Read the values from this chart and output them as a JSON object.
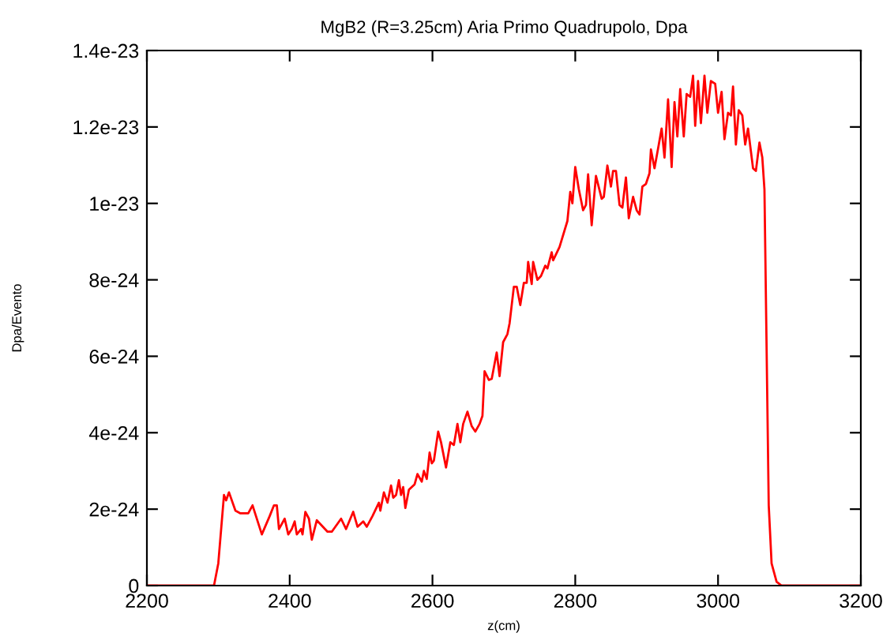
{
  "chart_data": {
    "type": "line",
    "title": "MgB2 (R=3.25cm) Aria Primo Quadrupolo, Dpa",
    "xlabel": "z(cm)",
    "ylabel": "Dpa/Evento",
    "xlim": [
      2200,
      3200
    ],
    "xticks": [
      2200,
      2400,
      2600,
      2800,
      3000,
      3200
    ],
    "ylim": [
      0,
      1.4e-23
    ],
    "yticks": [
      0,
      2e-24,
      4e-24,
      6e-24,
      8e-24,
      1e-23,
      1.2e-23,
      1.4e-23
    ],
    "grid": false,
    "legend": false,
    "marker": "none",
    "line_style": "solid",
    "series": [
      {
        "color": "#ff0000",
        "x": [
          2200,
          2294,
          2300,
          2308,
          2311,
          2315,
          2324,
          2331,
          2342,
          2348,
          2361,
          2372,
          2378,
          2382,
          2385,
          2393,
          2398,
          2403,
          2407,
          2410,
          2416,
          2418,
          2422,
          2427,
          2431,
          2438,
          2453,
          2459,
          2472,
          2479,
          2489,
          2495,
          2503,
          2508,
          2516,
          2525,
          2527,
          2532,
          2537,
          2542,
          2545,
          2549,
          2553,
          2556,
          2559,
          2562,
          2567,
          2575,
          2579,
          2585,
          2588,
          2592,
          2596,
          2599,
          2602,
          2608,
          2612,
          2619,
          2625,
          2630,
          2635,
          2639,
          2643,
          2649,
          2655,
          2660,
          2666,
          2670,
          2673,
          2679,
          2683,
          2690,
          2694,
          2699,
          2705,
          2708,
          2714,
          2718,
          2723,
          2728,
          2732,
          2734,
          2739,
          2741,
          2747,
          2752,
          2758,
          2761,
          2767,
          2769,
          2778,
          2789,
          2793,
          2796,
          2800,
          2805,
          2811,
          2815,
          2818,
          2823,
          2829,
          2837,
          2840,
          2845,
          2850,
          2853,
          2857,
          2862,
          2866,
          2871,
          2875,
          2881,
          2886,
          2890,
          2894,
          2899,
          2904,
          2906,
          2911,
          2917,
          2921,
          2925,
          2930,
          2935,
          2939,
          2943,
          2947,
          2952,
          2956,
          2961,
          2965,
          2968,
          2972,
          2976,
          2981,
          2985,
          2990,
          2996,
          3000,
          3005,
          3009,
          3014,
          3018,
          3021,
          3025,
          3029,
          3034,
          3038,
          3042,
          3049,
          3053,
          3058,
          3062,
          3065,
          3068,
          3071,
          3075,
          3082,
          3089,
          3200
        ],
        "values": [
          0,
          0,
          5.8e-25,
          2.37e-24,
          2.23e-24,
          2.44e-24,
          1.96e-24,
          1.89e-24,
          1.89e-24,
          2.1e-24,
          1.34e-24,
          1.82e-24,
          2.1e-24,
          2.1e-24,
          1.48e-24,
          1.75e-24,
          1.34e-24,
          1.48e-24,
          1.68e-24,
          1.34e-24,
          1.48e-24,
          1.34e-24,
          1.93e-24,
          1.75e-24,
          1.2e-24,
          1.71e-24,
          1.41e-24,
          1.41e-24,
          1.75e-24,
          1.48e-24,
          1.93e-24,
          1.54e-24,
          1.68e-24,
          1.54e-24,
          1.82e-24,
          2.17e-24,
          1.96e-24,
          2.44e-24,
          2.17e-24,
          2.62e-24,
          2.3e-24,
          2.37e-24,
          2.76e-24,
          2.37e-24,
          2.58e-24,
          2.03e-24,
          2.51e-24,
          2.65e-24,
          2.92e-24,
          2.72e-24,
          3e-24,
          2.79e-24,
          3.48e-24,
          3.2e-24,
          3.27e-24,
          4.03e-24,
          3.75e-24,
          3.09e-24,
          3.75e-24,
          3.68e-24,
          4.23e-24,
          3.75e-24,
          4.23e-24,
          4.55e-24,
          4.17e-24,
          4.03e-24,
          4.23e-24,
          4.44e-24,
          5.61e-24,
          5.38e-24,
          5.41e-24,
          6.1e-24,
          5.48e-24,
          6.37e-24,
          6.58e-24,
          6.86e-24,
          7.82e-24,
          7.82e-24,
          7.34e-24,
          7.92e-24,
          7.92e-24,
          8.47e-24,
          7.89e-24,
          8.47e-24,
          8e-24,
          8.1e-24,
          8.37e-24,
          8.3e-24,
          8.72e-24,
          8.51e-24,
          8.86e-24,
          9.54e-24,
          1.03e-23,
          1e-23,
          1.095e-23,
          1.037e-23,
          9.82e-24,
          9.96e-24,
          1.076e-23,
          9.43e-24,
          1.072e-23,
          1.012e-23,
          1.017e-23,
          1.099e-23,
          1.044e-23,
          1.085e-23,
          1.085e-23,
          9.96e-24,
          9.89e-24,
          1.068e-23,
          9.61e-24,
          1.017e-23,
          9.82e-24,
          9.71e-24,
          1.044e-23,
          1.051e-23,
          1.079e-23,
          1.141e-23,
          1.092e-23,
          1.154e-23,
          1.196e-23,
          1.12e-23,
          1.272e-23,
          1.095e-23,
          1.265e-23,
          1.175e-23,
          1.299e-23,
          1.175e-23,
          1.286e-23,
          1.279e-23,
          1.334e-23,
          1.203e-23,
          1.32e-23,
          1.21e-23,
          1.334e-23,
          1.237e-23,
          1.32e-23,
          1.313e-23,
          1.237e-23,
          1.292e-23,
          1.168e-23,
          1.237e-23,
          1.23e-23,
          1.306e-23,
          1.154e-23,
          1.244e-23,
          1.23e-23,
          1.154e-23,
          1.196e-23,
          1.092e-23,
          1.085e-23,
          1.159e-23,
          1.12e-23,
          1.037e-23,
          6.23e-24,
          2.1e-24,
          5.8e-25,
          1e-25,
          0,
          0
        ]
      }
    ]
  }
}
